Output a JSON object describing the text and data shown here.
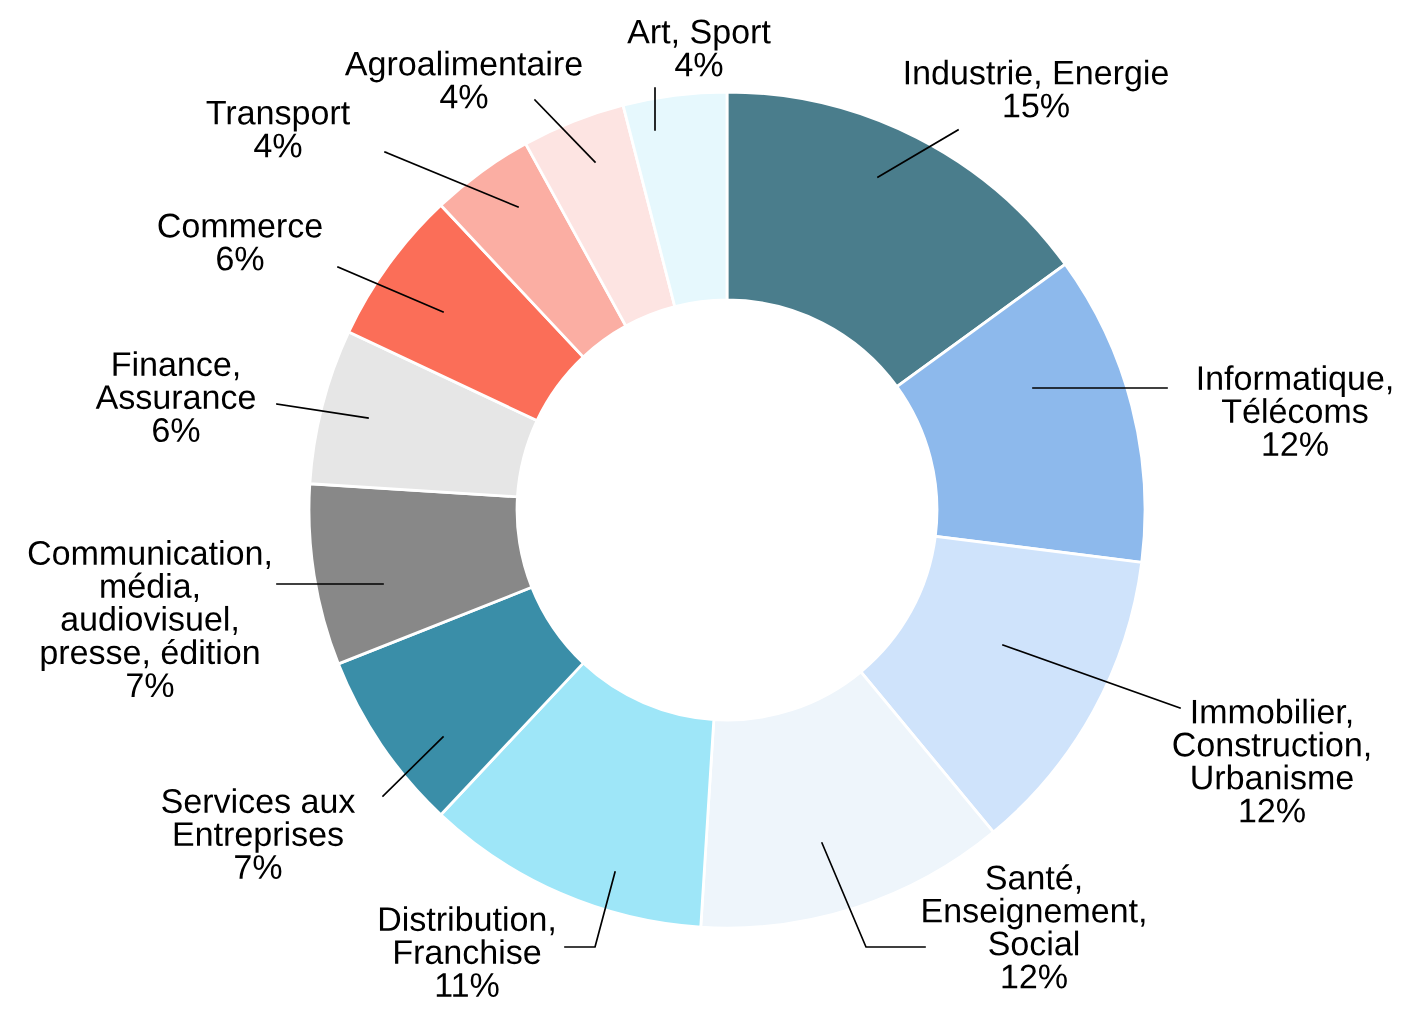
{
  "chart_data": {
    "type": "donut",
    "categories": [
      "Industrie, Energie",
      "Informatique,\nTélécoms",
      "Immobilier,\nConstruction,\nUrbanisme",
      "Santé,\nEnseignement,\nSocial",
      "Distribution,\nFranchise",
      "Services aux\nEntreprises",
      "Communication,\nmédia,\naudiovisuel,\npresse, édition",
      "Finance,\nAssurance",
      "Commerce",
      "Transport",
      "Agroalimentaire",
      "Art, Sport"
    ],
    "values": [
      15,
      12,
      12,
      12,
      11,
      7,
      7,
      6,
      6,
      4,
      4,
      4
    ],
    "value_labels": [
      "15%",
      "12%",
      "12%",
      "12%",
      "11%",
      "7%",
      "7%",
      "6%",
      "6%",
      "4%",
      "4%",
      "4%"
    ],
    "colors": [
      "#4a7d8c",
      "#8db9ec",
      "#cfe3fb",
      "#eef5fb",
      "#9ee6f8",
      "#3a8ea8",
      "#888888",
      "#e6e6e6",
      "#fb6e58",
      "#fbaea3",
      "#fde4e2",
      "#e6f8fd"
    ],
    "legend": false
  }
}
